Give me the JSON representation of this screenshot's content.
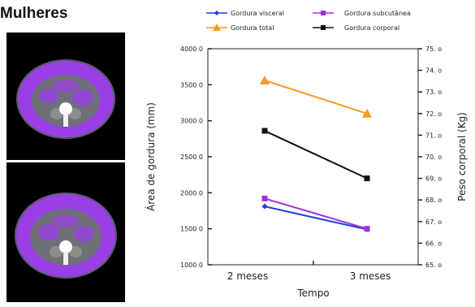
{
  "figure": {
    "title": "Mulheres"
  },
  "images": [
    {
      "kind": "ct-abdomen-cross-section",
      "fat_color": "#9a3fe6"
    },
    {
      "kind": "ct-abdomen-cross-section",
      "fat_color": "#9a3fe6"
    }
  ],
  "chart_data": {
    "type": "line",
    "categories": [
      "2 meses",
      "3 meses"
    ],
    "xlabel": "Tempo",
    "ylabel_left": "Área de gordura (mm)",
    "ylabel_right": "Peso corporal (Kg)",
    "ylim_left": [
      1000,
      4000
    ],
    "ylim_right": [
      65,
      75
    ],
    "left_ticks": [
      "1000 0",
      "1500 0",
      "2000 0",
      "2500 0",
      "3000 0",
      "3500 0",
      "4000 0"
    ],
    "right_ticks": [
      "65. o",
      "66. o",
      "67. o",
      "68. o",
      "69. o",
      "70. o",
      "71. o",
      "72. o",
      "73. o",
      "74. o",
      "75. o"
    ],
    "grid": false,
    "legend_position": "top",
    "series": [
      {
        "name": "Gordura visceral",
        "axis": "left",
        "values": [
          1810,
          1490
        ],
        "color": "#1f3fd8",
        "marker": "diamond"
      },
      {
        "name": "Gordura subcutânea",
        "axis": "left",
        "values": [
          1920,
          1500
        ],
        "color": "#9a32e0",
        "marker": "square"
      },
      {
        "name": "Gordura total",
        "axis": "left",
        "values": [
          3560,
          3100
        ],
        "color": "#f59a23",
        "marker": "triangle"
      },
      {
        "name": "Gordura corporal",
        "axis": "right",
        "values": [
          71.2,
          69.0
        ],
        "color": "#111111",
        "marker": "square"
      }
    ]
  }
}
